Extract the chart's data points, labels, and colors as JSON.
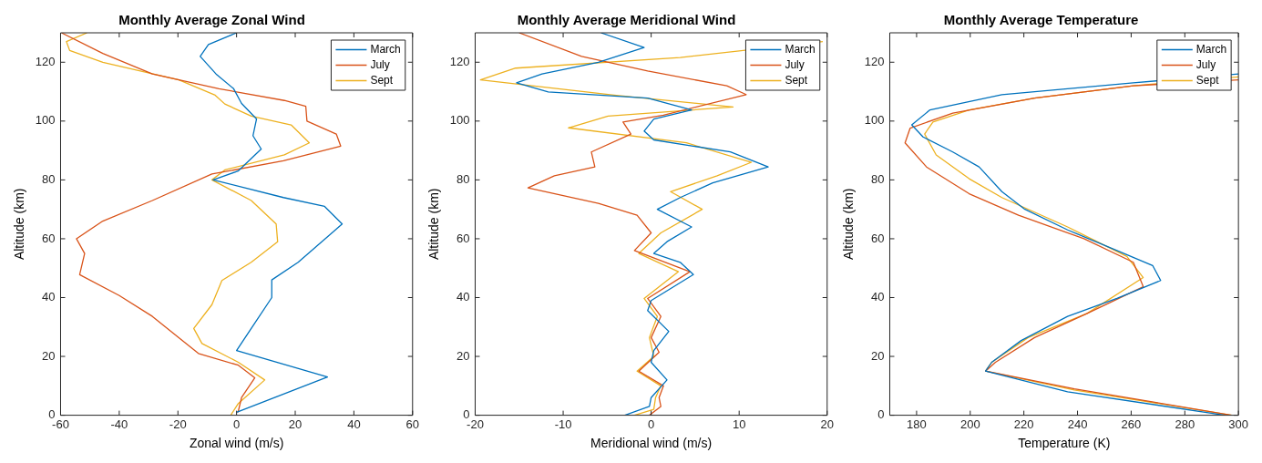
{
  "chart_data": [
    {
      "type": "line",
      "title": "Monthly Average Zonal Wind",
      "xlabel": "Zonal wind (m/s)",
      "ylabel": "Altitude (km)",
      "xlim": [
        -60,
        60
      ],
      "xticks": [
        -60,
        -40,
        -20,
        0,
        20,
        40,
        60
      ],
      "ylim": [
        0,
        130
      ],
      "yticks": [
        0,
        20,
        40,
        60,
        80,
        100,
        120
      ],
      "legend": "top right",
      "grid": false,
      "series": [
        {
          "name": "March",
          "color": "#0072bd",
          "x": [
            0,
            31,
            0,
            5,
            12,
            12,
            21,
            36,
            30,
            16,
            -8,
            0.5,
            8.4,
            5.6,
            6.8,
            1.7,
            -1,
            -7,
            -12.4,
            -9.6,
            0
          ],
          "values": [
            1,
            13,
            22,
            29.5,
            40,
            46,
            52,
            65,
            71,
            74,
            80,
            83,
            90.5,
            95,
            100.7,
            106,
            111,
            116,
            122,
            126,
            130
          ]
        },
        {
          "name": "July",
          "color": "#d95319",
          "x": [
            0.5,
            1.7,
            6.2,
            0.6,
            -13,
            -19.7,
            -28.7,
            -40,
            -53.5,
            -51.8,
            -54.6,
            -45.6,
            -28.7,
            -8.4,
            16,
            35.5,
            34,
            24,
            23.6,
            16.3,
            -6,
            -28.7,
            -45.6,
            -59.7
          ],
          "values": [
            1,
            6,
            12.7,
            17,
            21,
            26.4,
            33.6,
            40.7,
            47.8,
            55,
            60,
            66,
            73,
            82,
            86.5,
            91.5,
            95.6,
            100,
            105,
            107,
            111,
            116,
            123,
            130
          ]
        },
        {
          "name": "Sept",
          "color": "#edb120",
          "x": [
            -2,
            0.6,
            9.6,
            0.6,
            -11.8,
            -14.6,
            -8.4,
            -5,
            5,
            14,
            13.5,
            5,
            -8.4,
            -4,
            16.3,
            24.8,
            18.6,
            5,
            -4,
            -7.3,
            -19.7,
            -45.6,
            -56.9,
            -58,
            -51
          ],
          "values": [
            0,
            4,
            12,
            18,
            24.4,
            29.5,
            37.6,
            45.8,
            52,
            59,
            65,
            73,
            80,
            83.4,
            88.5,
            92.6,
            98.7,
            101.7,
            105.8,
            108.8,
            114,
            120,
            124,
            127,
            130
          ]
        }
      ]
    },
    {
      "type": "line",
      "title": "Monthly Average Meridional Wind",
      "xlabel": "Meridional wind (m/s)",
      "ylabel": "Altitude (km)",
      "xlim": [
        -20,
        20
      ],
      "xticks": [
        -20,
        -10,
        0,
        10,
        20
      ],
      "ylim": [
        0,
        130
      ],
      "yticks": [
        0,
        20,
        40,
        60,
        80,
        100,
        120
      ],
      "legend": "top right",
      "grid": false,
      "series": [
        {
          "name": "March",
          "color": "#0072bd",
          "x": [
            -3,
            -0.2,
            0,
            1.8,
            0,
            0.3,
            2,
            -0.4,
            0,
            4.8,
            3.3,
            0.3,
            1.8,
            4.6,
            0.7,
            3.3,
            7,
            13.3,
            9,
            0.3,
            -0.8,
            0.3,
            4.6,
            -0.4,
            -11.7,
            -15.3,
            -12.4,
            -6,
            -0.8,
            -5.7
          ],
          "values": [
            0,
            3,
            6,
            12,
            18,
            22,
            28.5,
            35.6,
            39,
            47.8,
            52,
            55,
            59,
            64,
            70,
            74,
            79,
            84.4,
            89.5,
            93.6,
            96.6,
            100.7,
            103.8,
            107.8,
            109.9,
            113,
            116,
            120,
            125,
            130
          ]
        },
        {
          "name": "July",
          "color": "#d95319",
          "x": [
            -0.2,
            1.1,
            0.9,
            1.4,
            -1.4,
            0.9,
            0,
            1.1,
            -0.4,
            4.4,
            -1.9,
            0,
            -1.6,
            -6,
            -14,
            -11,
            -6.4,
            -6.8,
            -2.3,
            -3.2,
            1.4,
            10.8,
            8.6,
            -0.4,
            -7.9,
            -15
          ],
          "values": [
            0,
            3,
            6,
            10,
            15,
            21.4,
            26.4,
            33.6,
            39.7,
            48.8,
            56,
            62,
            68,
            72,
            77.3,
            81.4,
            84.4,
            89.5,
            95.6,
            99.7,
            102,
            109,
            112,
            117,
            122,
            130
          ]
        },
        {
          "name": "Sept",
          "color": "#edb120",
          "x": [
            -1.9,
            0.3,
            0.5,
            1.1,
            -1.6,
            0.3,
            -0.2,
            0.7,
            -0.8,
            3.1,
            -1.4,
            1.1,
            5.8,
            2.2,
            7.5,
            11.4,
            4,
            -9.4,
            -4.9,
            9.3,
            -4.2,
            -19.4,
            -15.4,
            3.3,
            19.5
          ],
          "values": [
            0,
            2,
            6,
            10,
            15,
            20,
            26.4,
            33.6,
            39.7,
            48.8,
            55,
            62,
            70,
            76,
            81.4,
            86,
            92.6,
            97.7,
            101.7,
            104.8,
            108.8,
            114,
            118,
            121.6,
            127
          ]
        }
      ]
    },
    {
      "type": "line",
      "title": "Monthly Average Temperature",
      "xlabel": "Temperature (K)",
      "ylabel": "Altitude (km)",
      "xlim": [
        170,
        300
      ],
      "xticks": [
        180,
        200,
        220,
        240,
        260,
        280,
        300
      ],
      "ylim": [
        0,
        130
      ],
      "yticks": [
        0,
        20,
        40,
        60,
        80,
        100,
        120
      ],
      "legend": "top right",
      "grid": false,
      "series": [
        {
          "name": "March",
          "color": "#0072bd",
          "x": [
            295,
            236.3,
            205.7,
            208,
            219,
            236.3,
            254.7,
            271,
            268,
            254.7,
            236.3,
            220.4,
            211.8,
            203.3,
            193.5,
            182.4,
            178.2,
            185,
            211.8,
            260.8,
            300
          ],
          "values": [
            0,
            8,
            15,
            18,
            25.4,
            33.6,
            39.7,
            45.8,
            50.9,
            56,
            63,
            70,
            76,
            84.4,
            89.5,
            94.6,
            98.7,
            103.8,
            109,
            113,
            116
          ]
        },
        {
          "name": "July",
          "color": "#d95319",
          "x": [
            297.5,
            238.8,
            205.7,
            209.4,
            224,
            243.6,
            264.5,
            260.8,
            242.4,
            218,
            199.6,
            183.7,
            175.7,
            177.6,
            193.5,
            224,
            260.8,
            300
          ],
          "values": [
            0,
            9,
            15,
            18,
            26.4,
            34.6,
            43.7,
            52,
            60,
            68,
            75.3,
            84.4,
            92.6,
            97.6,
            102.7,
            107.8,
            112,
            114
          ]
        },
        {
          "name": "Sept",
          "color": "#edb120",
          "x": [
            297.5,
            238.8,
            205.7,
            208,
            221.6,
            243.6,
            264.5,
            258.4,
            236.3,
            211.8,
            199.6,
            187.3,
            183,
            186.1,
            199.6,
            224,
            260.8,
            300
          ],
          "values": [
            0,
            8.6,
            15,
            18,
            26.4,
            34.6,
            46.8,
            54,
            64,
            74,
            80.4,
            88.5,
            95.6,
            99.7,
            103.8,
            107.8,
            112,
            115
          ]
        }
      ]
    }
  ]
}
